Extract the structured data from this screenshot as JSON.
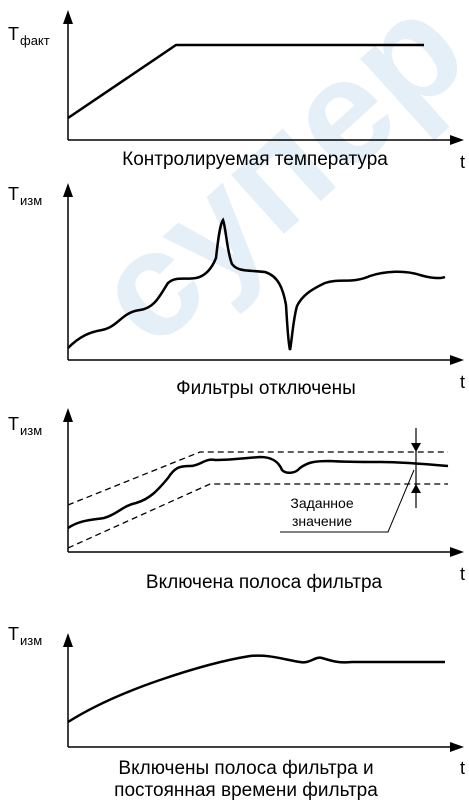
{
  "watermark": {
    "text": "супер",
    "color": "#c7dcef"
  },
  "colors": {
    "line": "#000000",
    "background": "#ffffff"
  },
  "panels": [
    {
      "y_label": "T",
      "y_label_sub": "факт",
      "x_label": "t",
      "caption": "Контролируемая температура"
    },
    {
      "y_label": "T",
      "y_label_sub": "изм",
      "x_label": "t",
      "caption": "Фильтры отключены"
    },
    {
      "y_label": "T",
      "y_label_sub": "изм",
      "x_label": "t",
      "caption": "Включена полоса фильтра",
      "annotation_line1": "Заданное",
      "annotation_line2": "значение"
    },
    {
      "y_label": "T",
      "y_label_sub": "изм",
      "x_label": "t",
      "caption_line1": "Включены полоса фильтра и",
      "caption_line2": "постоянная времени фильтра"
    }
  ]
}
